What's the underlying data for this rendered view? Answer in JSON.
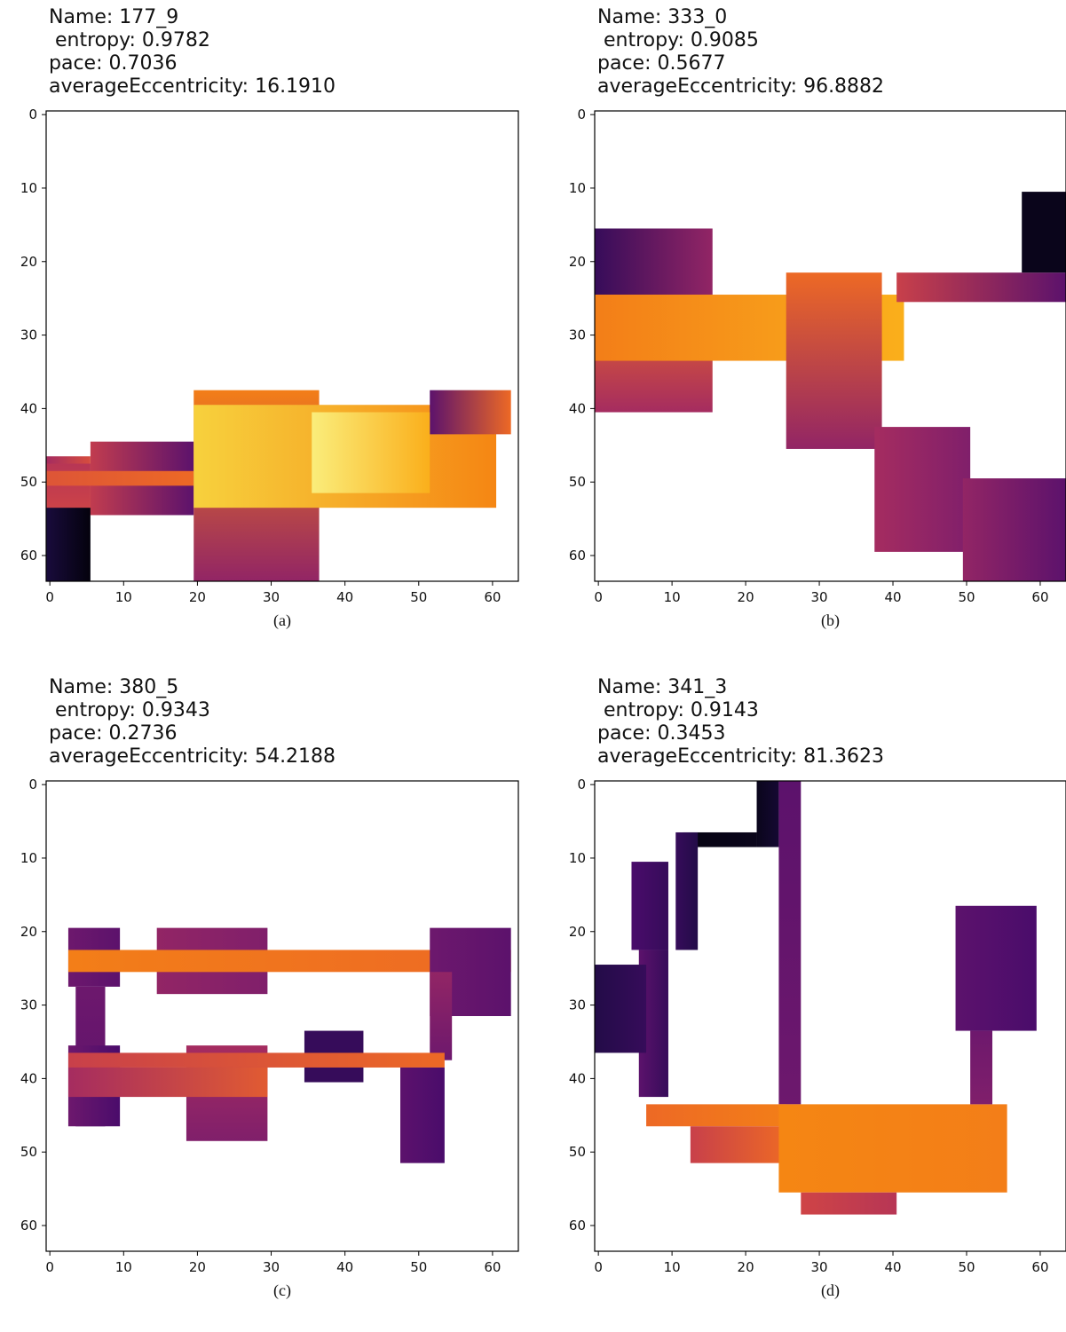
{
  "chart_data": [
    {
      "type": "heatmap",
      "panel": "a",
      "caption": "(a)",
      "title_lines": [
        "Name: 177_9",
        " entropy: 0.9782",
        "pace: 0.7036",
        "averageEccentricity: 16.1910"
      ],
      "x_ticks": [
        "0",
        "10",
        "20",
        "30",
        "40",
        "50",
        "60"
      ],
      "y_ticks": [
        "0",
        "10",
        "20",
        "30",
        "40",
        "50",
        "60"
      ],
      "xlim": [
        -0.5,
        63.5
      ],
      "ylim": [
        63.5,
        -0.5
      ],
      "regions": [
        {
          "x": [
            0,
            5
          ],
          "y": [
            47,
            53
          ],
          "value": 0.5,
          "value_end": 0.65,
          "dir": "h",
          "dir_note": "mixed"
        },
        {
          "x": [
            0,
            5
          ],
          "y": [
            48,
            54
          ],
          "value": 0.55,
          "value_end": 0.62,
          "dir": "v"
        },
        {
          "x": [
            6,
            19
          ],
          "y": [
            45,
            54
          ],
          "value": 0.58,
          "value_end": 0.3,
          "dir": "h"
        },
        {
          "x": [
            0,
            19
          ],
          "y": [
            49,
            50
          ],
          "value": 0.68,
          "value_end": 0.75,
          "dir": "h"
        },
        {
          "x": [
            0,
            5
          ],
          "y": [
            54,
            63
          ],
          "value": 0.12,
          "value_end": 0.02,
          "dir": "h"
        },
        {
          "x": [
            20,
            36
          ],
          "y": [
            38,
            63
          ],
          "value": 0.8,
          "value_end": 0.45,
          "dir": "v"
        },
        {
          "x": [
            20,
            60
          ],
          "y": [
            40,
            53
          ],
          "value": 0.95,
          "value_end": 0.82,
          "dir": "h"
        },
        {
          "x": [
            52,
            62
          ],
          "y": [
            38,
            43
          ],
          "value": 0.3,
          "value_end": 0.75,
          "dir": "h"
        },
        {
          "x": [
            36,
            51
          ],
          "y": [
            41,
            51
          ],
          "value": 0.98,
          "value_end": 0.9,
          "dir": "h"
        }
      ]
    },
    {
      "type": "heatmap",
      "panel": "b",
      "caption": "(b)",
      "title_lines": [
        "Name: 333_0",
        " entropy: 0.9085",
        "pace: 0.5677",
        "averageEccentricity: 96.8882"
      ],
      "x_ticks": [
        "0",
        "10",
        "20",
        "30",
        "40",
        "50",
        "60"
      ],
      "y_ticks": [
        "0",
        "10",
        "20",
        "30",
        "40",
        "50",
        "60"
      ],
      "xlim": [
        -0.5,
        63.5
      ],
      "ylim": [
        63.5,
        -0.5
      ],
      "regions": [
        {
          "x": [
            0,
            15
          ],
          "y": [
            16,
            24
          ],
          "value": 0.2,
          "value_end": 0.45,
          "dir": "h"
        },
        {
          "x": [
            0,
            15
          ],
          "y": [
            25,
            40
          ],
          "value": 0.75,
          "value_end": 0.5,
          "dir": "v"
        },
        {
          "x": [
            0,
            41
          ],
          "y": [
            25,
            33
          ],
          "value": 0.8,
          "value_end": 0.9,
          "dir": "h"
        },
        {
          "x": [
            26,
            38
          ],
          "y": [
            22,
            45
          ],
          "value": 0.75,
          "value_end": 0.45,
          "dir": "v"
        },
        {
          "x": [
            41,
            63
          ],
          "y": [
            22,
            25
          ],
          "value": 0.6,
          "value_end": 0.3,
          "dir": "h"
        },
        {
          "x": [
            58,
            63
          ],
          "y": [
            11,
            21
          ],
          "value": 0.05,
          "value_end": 0.05,
          "dir": "h"
        },
        {
          "x": [
            38,
            50
          ],
          "y": [
            43,
            59
          ],
          "value": 0.5,
          "value_end": 0.4,
          "dir": "h"
        },
        {
          "x": [
            50,
            63
          ],
          "y": [
            50,
            63
          ],
          "value": 0.45,
          "value_end": 0.3,
          "dir": "h"
        }
      ]
    },
    {
      "type": "heatmap",
      "panel": "c",
      "caption": "(c)",
      "title_lines": [
        "Name: 380_5",
        " entropy: 0.9343",
        "pace: 0.2736",
        "averageEccentricity: 54.2188"
      ],
      "x_ticks": [
        "0",
        "10",
        "20",
        "30",
        "40",
        "50",
        "60"
      ],
      "y_ticks": [
        "0",
        "10",
        "20",
        "30",
        "40",
        "50",
        "60"
      ],
      "xlim": [
        -0.5,
        63.5
      ],
      "ylim": [
        63.5,
        -0.5
      ],
      "regions": [
        {
          "x": [
            3,
            9
          ],
          "y": [
            20,
            27
          ],
          "value": 0.35,
          "value_end": 0.3,
          "dir": "h"
        },
        {
          "x": [
            4,
            7
          ],
          "y": [
            28,
            46
          ],
          "value": 0.35,
          "value_end": 0.3,
          "dir": "v"
        },
        {
          "x": [
            3,
            9
          ],
          "y": [
            36,
            46
          ],
          "value": 0.35,
          "value_end": 0.25,
          "dir": "h"
        },
        {
          "x": [
            15,
            29
          ],
          "y": [
            20,
            28
          ],
          "value": 0.45,
          "value_end": 0.4,
          "dir": "h"
        },
        {
          "x": [
            3,
            62
          ],
          "y": [
            23,
            25
          ],
          "value": 0.8,
          "value_end": 0.75,
          "dir": "h"
        },
        {
          "x": [
            52,
            62
          ],
          "y": [
            20,
            31
          ],
          "value": 0.35,
          "value_end": 0.3,
          "dir": "h"
        },
        {
          "x": [
            52,
            54
          ],
          "y": [
            26,
            37
          ],
          "value": 0.45,
          "value_end": 0.35,
          "dir": "v"
        },
        {
          "x": [
            19,
            29
          ],
          "y": [
            36,
            48
          ],
          "value": 0.5,
          "value_end": 0.4,
          "dir": "v"
        },
        {
          "x": [
            35,
            42
          ],
          "y": [
            34,
            40
          ],
          "value": 0.2,
          "value_end": 0.2,
          "dir": "h"
        },
        {
          "x": [
            3,
            53
          ],
          "y": [
            37,
            38
          ],
          "value": 0.6,
          "value_end": 0.75,
          "dir": "h"
        },
        {
          "x": [
            3,
            29
          ],
          "y": [
            39,
            42
          ],
          "value": 0.5,
          "value_end": 0.7,
          "dir": "h"
        },
        {
          "x": [
            48,
            53
          ],
          "y": [
            39,
            51
          ],
          "value": 0.3,
          "value_end": 0.25,
          "dir": "h"
        }
      ]
    },
    {
      "type": "heatmap",
      "panel": "d",
      "caption": "(d)",
      "title_lines": [
        "Name: 341_3",
        " entropy: 0.9143",
        "pace: 0.3453",
        "averageEccentricity: 81.3623"
      ],
      "x_ticks": [
        "0",
        "10",
        "20",
        "30",
        "40",
        "50",
        "60"
      ],
      "y_ticks": [
        "0",
        "10",
        "20",
        "30",
        "40",
        "50",
        "60"
      ],
      "xlim": [
        -0.5,
        63.5
      ],
      "ylim": [
        63.5,
        -0.5
      ],
      "regions": [
        {
          "x": [
            22,
            24
          ],
          "y": [
            0,
            8
          ],
          "value": 0.05,
          "value_end": 0.1,
          "dir": "h"
        },
        {
          "x": [
            12,
            21
          ],
          "y": [
            7,
            8
          ],
          "value": 0.03,
          "value_end": 0.05,
          "dir": "h"
        },
        {
          "x": [
            11,
            13
          ],
          "y": [
            7,
            22
          ],
          "value": 0.2,
          "value_end": 0.15,
          "dir": "h"
        },
        {
          "x": [
            25,
            27
          ],
          "y": [
            0,
            43
          ],
          "value": 0.3,
          "value_end": 0.35,
          "dir": "v"
        },
        {
          "x": [
            5,
            9
          ],
          "y": [
            11,
            22
          ],
          "value": 0.25,
          "value_end": 0.2,
          "dir": "h"
        },
        {
          "x": [
            6,
            9
          ],
          "y": [
            23,
            42
          ],
          "value": 0.3,
          "value_end": 0.2,
          "dir": "h"
        },
        {
          "x": [
            0,
            6
          ],
          "y": [
            25,
            36
          ],
          "value": 0.15,
          "value_end": 0.2,
          "dir": "h"
        },
        {
          "x": [
            7,
            25
          ],
          "y": [
            44,
            46
          ],
          "value": 0.75,
          "value_end": 0.8,
          "dir": "h"
        },
        {
          "x": [
            13,
            25
          ],
          "y": [
            47,
            51
          ],
          "value": 0.6,
          "value_end": 0.75,
          "dir": "h"
        },
        {
          "x": [
            25,
            55
          ],
          "y": [
            44,
            55
          ],
          "value": 0.82,
          "value_end": 0.8,
          "dir": "h"
        },
        {
          "x": [
            28,
            40
          ],
          "y": [
            56,
            58
          ],
          "value": 0.62,
          "value_end": 0.55,
          "dir": "h"
        },
        {
          "x": [
            49,
            59
          ],
          "y": [
            17,
            33
          ],
          "value": 0.3,
          "value_end": 0.25,
          "dir": "h"
        },
        {
          "x": [
            51,
            53
          ],
          "y": [
            34,
            43
          ],
          "value": 0.35,
          "value_end": 0.4,
          "dir": "v"
        }
      ]
    }
  ]
}
